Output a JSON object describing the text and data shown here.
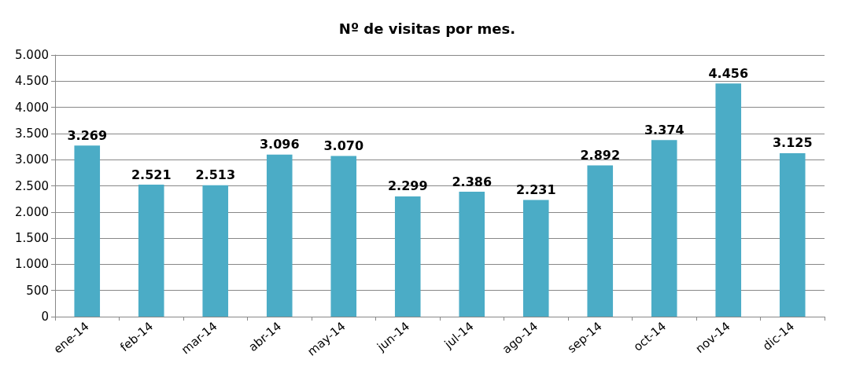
{
  "chart_data": {
    "type": "bar",
    "title": "Nº de visitas por mes.",
    "categories": [
      "ene-14",
      "feb-14",
      "mar-14",
      "abr-14",
      "may-14",
      "jun-14",
      "jul-14",
      "ago-14",
      "sep-14",
      "oct-14",
      "nov-14",
      "dic-14"
    ],
    "values": [
      3269,
      2521,
      2513,
      3096,
      3070,
      2299,
      2386,
      2231,
      2892,
      3374,
      4456,
      3125
    ],
    "value_labels": [
      "3.269",
      "2.521",
      "2.513",
      "3.096",
      "3.070",
      "2.299",
      "2.386",
      "2.231",
      "2.892",
      "3.374",
      "4.456",
      "3.125"
    ],
    "color": "#4bacc6",
    "ylim": [
      0,
      5000
    ],
    "yticks": [
      0,
      500,
      {
        "value": 1000,
        "label": "1.000"
      },
      {
        "value": 1500,
        "label": "1.500"
      },
      {
        "value": 2000,
        "label": "2.000"
      },
      {
        "value": 2500,
        "label": "2.500"
      },
      {
        "value": 3000,
        "label": "3.000"
      },
      {
        "value": 3500,
        "label": "3.500"
      },
      {
        "value": 4000,
        "label": "4.000"
      },
      {
        "value": 4500,
        "label": "4.500"
      },
      {
        "value": 5000,
        "label": "5.000"
      }
    ],
    "grid": "y"
  }
}
